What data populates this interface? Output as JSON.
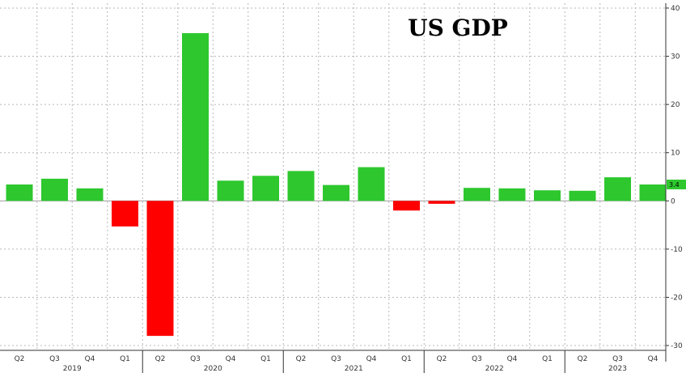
{
  "chart_data": {
    "type": "bar",
    "title": "US GDP",
    "categories": [
      "Q2",
      "Q3",
      "Q4",
      "Q1",
      "Q2",
      "Q3",
      "Q4",
      "Q1",
      "Q2",
      "Q3",
      "Q4",
      "Q1",
      "Q2",
      "Q3",
      "Q4",
      "Q1",
      "Q2",
      "Q3",
      "Q4"
    ],
    "years": [
      {
        "label": "2019",
        "index": 0
      },
      {
        "label": "2020",
        "index": 4
      },
      {
        "label": "2021",
        "index": 8
      },
      {
        "label": "2022",
        "index": 12
      },
      {
        "label": "2023",
        "index": 16
      }
    ],
    "values": [
      3.4,
      4.6,
      2.6,
      -5.3,
      -28.0,
      34.8,
      4.2,
      5.2,
      6.2,
      3.3,
      7.0,
      -2.0,
      -0.6,
      2.7,
      2.6,
      2.2,
      2.1,
      4.9,
      3.4
    ],
    "positive_color": "#2ec72e",
    "negative_color": "#ff0000",
    "ylim": [
      -31,
      41
    ],
    "yticks": [
      40,
      30,
      20,
      10,
      0,
      -10,
      -20,
      -30
    ],
    "y_axis_side": "right",
    "grid": true,
    "last_value_label": "3.4",
    "xlabel": "",
    "ylabel": ""
  }
}
